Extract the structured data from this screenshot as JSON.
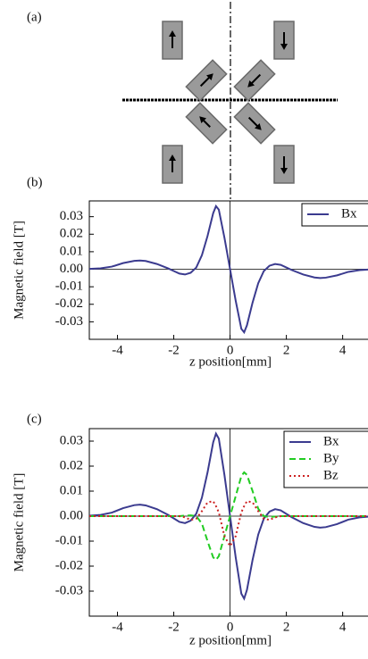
{
  "diagram": {
    "label": "(a)"
  },
  "chart_data": [
    {
      "type": "line",
      "panel_label": "(b)",
      "xlabel": "z position[mm]",
      "ylabel": "Magnetic field [T]",
      "xlim": [
        -5,
        4.9
      ],
      "xticks": [
        -4,
        -2,
        0,
        2,
        4
      ],
      "ylim": [
        -0.04,
        0.039
      ],
      "yticks": [
        0.03,
        0.02,
        0.01,
        {
          "value": 0,
          "label": "0.00"
        },
        -0.01,
        -0.02,
        -0.03
      ],
      "x": [
        -5,
        -4.6,
        -4.2,
        -3.8,
        -3.4,
        -3.2,
        -3.0,
        -2.6,
        -2.2,
        -2.0,
        -1.8,
        -1.6,
        -1.4,
        -1.2,
        -1.0,
        -0.8,
        -0.6,
        -0.5,
        -0.4,
        -0.2,
        0,
        0.2,
        0.4,
        0.5,
        0.6,
        0.8,
        1.0,
        1.2,
        1.4,
        1.6,
        1.8,
        2.0,
        2.2,
        2.6,
        3.0,
        3.2,
        3.4,
        3.8,
        4.2,
        4.6,
        4.9
      ],
      "series": [
        {
          "name": "Bx",
          "color": "#3b3b8f",
          "style": "solid",
          "values": [
            0.0002,
            0.0005,
            0.0015,
            0.0035,
            0.0048,
            0.005,
            0.0047,
            0.003,
            0.0005,
            -0.001,
            -0.0025,
            -0.003,
            -0.002,
            0.001,
            0.008,
            0.019,
            0.032,
            0.036,
            0.034,
            0.018,
            0,
            -0.018,
            -0.034,
            -0.036,
            -0.032,
            -0.019,
            -0.008,
            -0.001,
            0.002,
            0.003,
            0.0025,
            0.001,
            -0.0005,
            -0.003,
            -0.0047,
            -0.005,
            -0.0048,
            -0.0035,
            -0.0015,
            -0.0005,
            -0.0002
          ]
        }
      ]
    },
    {
      "type": "line",
      "panel_label": "(c)",
      "xlabel": "z position[mm]",
      "ylabel": "Magnetic field [T]",
      "xlim": [
        -5,
        4.9
      ],
      "xticks": [
        -4,
        -2,
        0,
        2,
        4
      ],
      "ylim": [
        -0.04,
        0.035
      ],
      "yticks": [
        0.03,
        0.02,
        0.01,
        {
          "value": 0,
          "label": "0.00"
        },
        -0.01,
        -0.02,
        -0.03
      ],
      "x": [
        -5,
        -4.6,
        -4.2,
        -3.8,
        -3.4,
        -3.2,
        -3.0,
        -2.6,
        -2.2,
        -2.0,
        -1.8,
        -1.6,
        -1.4,
        -1.2,
        -1.0,
        -0.8,
        -0.6,
        -0.5,
        -0.4,
        -0.2,
        0,
        0.2,
        0.4,
        0.5,
        0.6,
        0.8,
        1.0,
        1.2,
        1.4,
        1.6,
        1.8,
        2.0,
        2.2,
        2.6,
        3.0,
        3.2,
        3.4,
        3.8,
        4.2,
        4.6,
        4.9
      ],
      "series": [
        {
          "name": "Bx",
          "color": "#3b3b8f",
          "style": "solid",
          "values": [
            0.0002,
            0.0005,
            0.0014,
            0.0032,
            0.0044,
            0.0046,
            0.0043,
            0.0028,
            0.0005,
            -0.0009,
            -0.0023,
            -0.0028,
            -0.0018,
            0.001,
            0.0074,
            0.0175,
            0.0295,
            0.033,
            0.031,
            0.0165,
            0,
            -0.0165,
            -0.031,
            -0.033,
            -0.0295,
            -0.0175,
            -0.0074,
            -0.001,
            0.0018,
            0.0028,
            0.0023,
            0.0009,
            -0.0005,
            -0.0028,
            -0.0043,
            -0.0046,
            -0.0044,
            -0.0032,
            -0.0014,
            -0.0005,
            -0.0002
          ]
        },
        {
          "name": "By",
          "color": "#22cc22",
          "style": "dashed",
          "values": [
            0,
            0,
            0,
            0,
            0,
            0,
            0,
            0,
            0,
            0,
            0,
            0.0002,
            0.0003,
            0,
            -0.003,
            -0.01,
            -0.0165,
            -0.0175,
            -0.016,
            -0.008,
            0,
            0.008,
            0.016,
            0.0175,
            0.0165,
            0.01,
            0.003,
            0,
            -0.0003,
            -0.0002,
            0,
            0,
            0,
            0,
            0,
            0,
            0,
            0,
            0,
            0,
            0
          ]
        },
        {
          "name": "Bz",
          "color": "#cc2222",
          "style": "dotted",
          "values": [
            0,
            0,
            0,
            0,
            0,
            0,
            0,
            0,
            0,
            0,
            0,
            -0.0005,
            -0.0015,
            -0.001,
            0.002,
            0.0055,
            0.006,
            0.004,
            0.0015,
            -0.008,
            -0.012,
            -0.008,
            0.0015,
            0.004,
            0.006,
            0.0055,
            0.002,
            -0.001,
            -0.0015,
            -0.0005,
            0,
            0,
            0,
            0,
            0,
            0,
            0,
            0,
            0,
            0,
            0
          ]
        }
      ]
    }
  ]
}
